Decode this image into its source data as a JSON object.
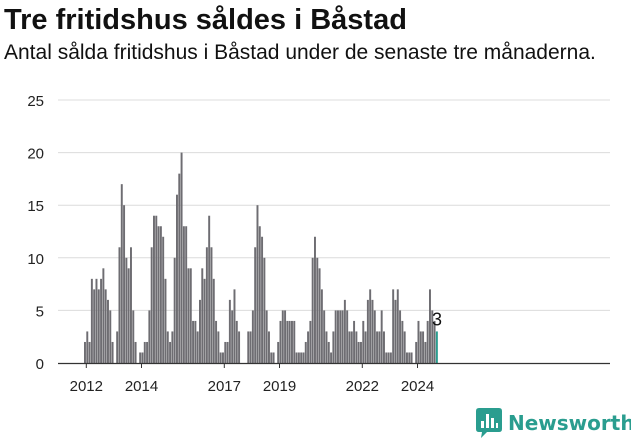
{
  "title": "Tre fritidshus såldes i Båstad",
  "subtitle": "Antal sålda fritidshus i Båstad under de senaste tre månaderna.",
  "brand": {
    "name": "Newsworthy",
    "icon": "bar-chart-logo-icon",
    "color": "#2a9d8f"
  },
  "chart_data": {
    "type": "bar",
    "title": "Tre fritidshus såldes i Båstad",
    "subtitle": "Antal sålda fritidshus i Båstad under de senaste tre månaderna.",
    "xlabel": "",
    "ylabel": "",
    "ylim": [
      0,
      25
    ],
    "yticks": [
      "0",
      "5",
      "10",
      "15",
      "20",
      "25"
    ],
    "xticks": [
      "2012",
      "2014",
      "2017",
      "2019",
      "2022",
      "2024"
    ],
    "xtick_values": [
      2012,
      2014,
      2017,
      2019,
      2022,
      2024
    ],
    "grid": true,
    "bar_color": "#6e6d72",
    "highlight_color": "#2a9d8f",
    "highlight_label": "3",
    "start": "2011-12",
    "series": [
      {
        "values": [
          2,
          3,
          2,
          8,
          7,
          8,
          7,
          8,
          9,
          7,
          6,
          5,
          2,
          0,
          3,
          11,
          17,
          15,
          10,
          9,
          11,
          5,
          2,
          0,
          1,
          1,
          2,
          2,
          5,
          11,
          14,
          14,
          13,
          13,
          12,
          8,
          3,
          2,
          3,
          10,
          16,
          18,
          20,
          13,
          13,
          9,
          9,
          4,
          4,
          3,
          6,
          9,
          8,
          11,
          14,
          11,
          8,
          4,
          3,
          1,
          1,
          2,
          2,
          6,
          5,
          7,
          4,
          3,
          0,
          0,
          0,
          3,
          3,
          5,
          11,
          15,
          13,
          12,
          10,
          5,
          3,
          1,
          1,
          0,
          2,
          4,
          5,
          5,
          4,
          4,
          4,
          4,
          1,
          1,
          1,
          1,
          2,
          3,
          4,
          10,
          12,
          10,
          9,
          7,
          5,
          3,
          2,
          1,
          3,
          5,
          5,
          5,
          5,
          6,
          5,
          3,
          3,
          4,
          3,
          2,
          2,
          4,
          3,
          6,
          7,
          6,
          5,
          3,
          3,
          5,
          3,
          1,
          1,
          1,
          7,
          6,
          7,
          5,
          4,
          3,
          1,
          1,
          1,
          0,
          2,
          4,
          3,
          3,
          2,
          4,
          7,
          5,
          4,
          3
        ]
      }
    ]
  }
}
